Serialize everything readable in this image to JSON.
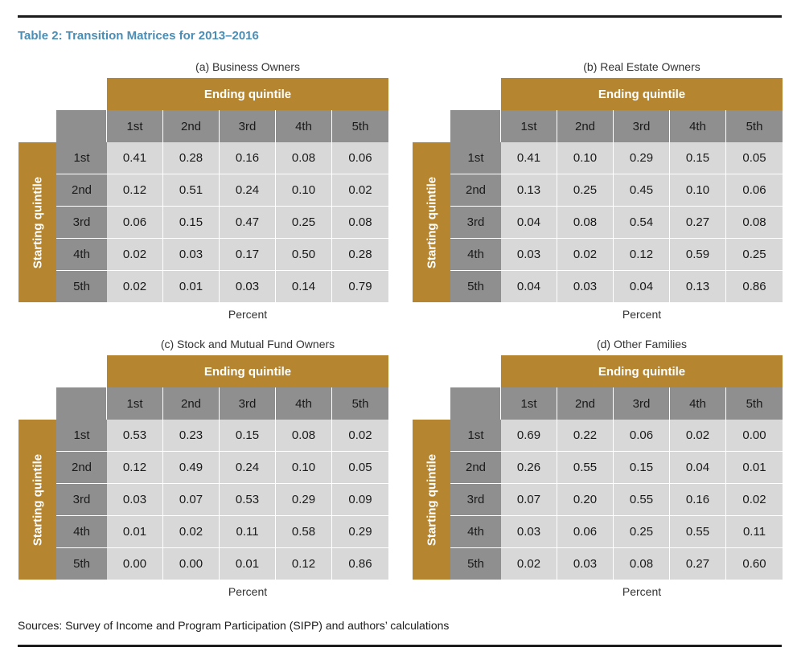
{
  "title": "Table 2: Transition Matrices for 2013–2016",
  "ending_label": "Ending quintile",
  "starting_label": "Starting quintile",
  "unit_label": "Percent",
  "columns": [
    "1st",
    "2nd",
    "3rd",
    "4th",
    "5th"
  ],
  "rows": [
    "1st",
    "2nd",
    "3rd",
    "4th",
    "5th"
  ],
  "sources": "Sources: Survey of Income and Program Participation (SIPP) and authors’ calculations",
  "panels": [
    {
      "caption": "(a) Business Owners",
      "matrix": [
        [
          "0.41",
          "0.28",
          "0.16",
          "0.08",
          "0.06"
        ],
        [
          "0.12",
          "0.51",
          "0.24",
          "0.10",
          "0.02"
        ],
        [
          "0.06",
          "0.15",
          "0.47",
          "0.25",
          "0.08"
        ],
        [
          "0.02",
          "0.03",
          "0.17",
          "0.50",
          "0.28"
        ],
        [
          "0.02",
          "0.01",
          "0.03",
          "0.14",
          "0.79"
        ]
      ]
    },
    {
      "caption": "(b) Real Estate Owners",
      "matrix": [
        [
          "0.41",
          "0.10",
          "0.29",
          "0.15",
          "0.05"
        ],
        [
          "0.13",
          "0.25",
          "0.45",
          "0.10",
          "0.06"
        ],
        [
          "0.04",
          "0.08",
          "0.54",
          "0.27",
          "0.08"
        ],
        [
          "0.03",
          "0.02",
          "0.12",
          "0.59",
          "0.25"
        ],
        [
          "0.04",
          "0.03",
          "0.04",
          "0.13",
          "0.86"
        ]
      ]
    },
    {
      "caption": "(c) Stock and Mutual Fund Owners",
      "matrix": [
        [
          "0.53",
          "0.23",
          "0.15",
          "0.08",
          "0.02"
        ],
        [
          "0.12",
          "0.49",
          "0.24",
          "0.10",
          "0.05"
        ],
        [
          "0.03",
          "0.07",
          "0.53",
          "0.29",
          "0.09"
        ],
        [
          "0.01",
          "0.02",
          "0.11",
          "0.58",
          "0.29"
        ],
        [
          "0.00",
          "0.00",
          "0.01",
          "0.12",
          "0.86"
        ]
      ]
    },
    {
      "caption": "(d) Other Families",
      "matrix": [
        [
          "0.69",
          "0.22",
          "0.06",
          "0.02",
          "0.00"
        ],
        [
          "0.26",
          "0.55",
          "0.15",
          "0.04",
          "0.01"
        ],
        [
          "0.07",
          "0.20",
          "0.55",
          "0.16",
          "0.02"
        ],
        [
          "0.03",
          "0.06",
          "0.25",
          "0.55",
          "0.11"
        ],
        [
          "0.02",
          "0.03",
          "0.08",
          "0.27",
          "0.60"
        ]
      ]
    }
  ]
}
